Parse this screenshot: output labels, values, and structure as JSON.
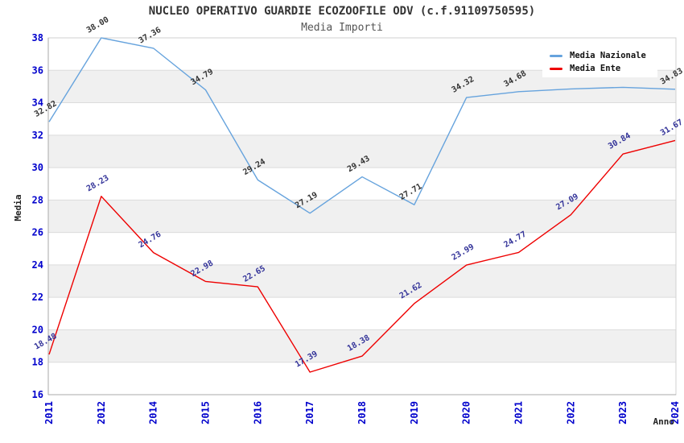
{
  "title": "NUCLEO OPERATIVO GUARDIE ECOZOOFILE ODV (c.f.91109750595)",
  "subtitle": "Media Importi",
  "colors": {
    "background": "#ffffff",
    "band": "#f0f0f0",
    "grid": "#dcdcdc",
    "border": "#d0d0d0",
    "axis": "#aaaaaa",
    "tick_label": "#0000cc",
    "axis_title": "#222222",
    "title": "#333333",
    "subtitle": "#555555"
  },
  "chart_data": {
    "type": "line",
    "title": "NUCLEO OPERATIVO GUARDIE ECOZOOFILE ODV (c.f.91109750595)",
    "subtitle": "Media Importi",
    "xlabel": "Anno",
    "ylabel": "Media",
    "ylim": [
      16,
      38
    ],
    "yticks": [
      16,
      18,
      20,
      22,
      24,
      26,
      28,
      30,
      32,
      34,
      36,
      38
    ],
    "categories": [
      "2011",
      "2012",
      "2014",
      "2015",
      "2016",
      "2017",
      "2018",
      "2019",
      "2020",
      "2021",
      "2022",
      "2023",
      "2024"
    ],
    "series": [
      {
        "name": "Media Nazionale",
        "color": "#66a3dd",
        "label_color": "#333333",
        "values": [
          32.82,
          38.0,
          37.36,
          34.79,
          29.24,
          27.19,
          29.43,
          27.71,
          34.32,
          34.68,
          34.85,
          34.95,
          34.83
        ],
        "labels": [
          "32.82",
          "38.00",
          "37.36",
          "34.79",
          "29.24",
          "27.19",
          "29.43",
          "27.71",
          "34.32",
          "34.68",
          null,
          null,
          "34.83"
        ]
      },
      {
        "name": "Media Ente",
        "color": "#ee0000",
        "label_color": "#333399",
        "values": [
          18.48,
          28.23,
          24.76,
          22.98,
          22.65,
          17.39,
          18.38,
          21.62,
          23.99,
          24.77,
          27.09,
          30.84,
          31.67
        ],
        "labels": [
          "18.48",
          "28.23",
          "24.76",
          "22.98",
          "22.65",
          "17.39",
          "18.38",
          "21.62",
          "23.99",
          "24.77",
          "27.09",
          "30.84",
          "31.67"
        ]
      }
    ],
    "legend_position": "top-right",
    "grid": "alternating-horizontal-bands"
  }
}
